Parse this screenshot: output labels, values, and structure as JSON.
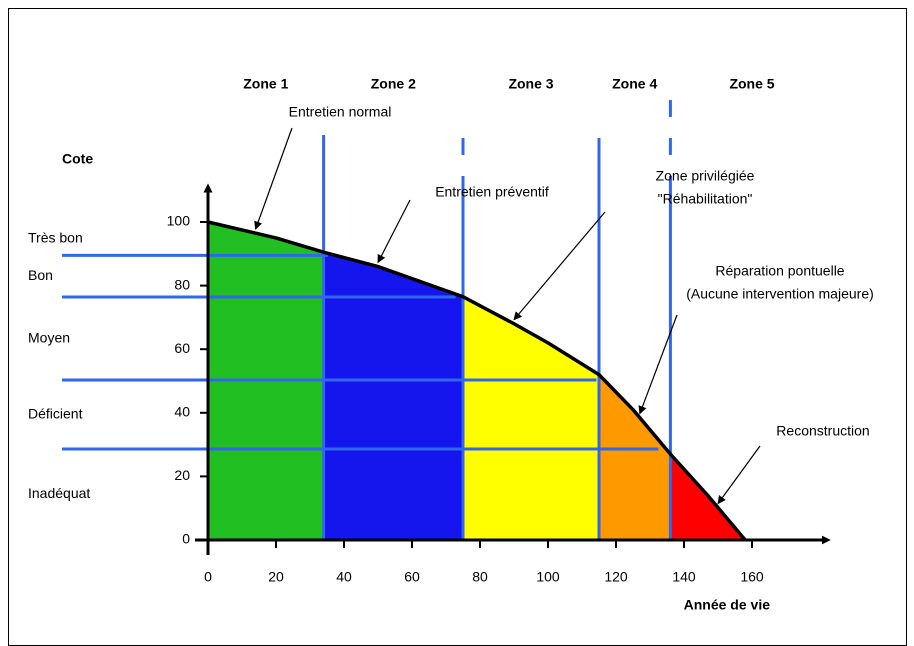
{
  "chart_data": {
    "type": "area",
    "y_axis_title": "Cote",
    "x_axis_title": "Année de vie",
    "x": [
      0,
      20,
      34,
      50,
      75,
      90,
      100,
      115,
      125,
      136,
      147,
      158
    ],
    "values": [
      100,
      95,
      90.5,
      86,
      76.5,
      68,
      62,
      52,
      41,
      27,
      14,
      0
    ],
    "xlim": [
      0,
      184
    ],
    "ylim": [
      0,
      113
    ],
    "xticks": [
      0,
      20,
      40,
      60,
      80,
      100,
      120,
      140,
      160
    ],
    "yticks": [
      0,
      20,
      40,
      60,
      80,
      100
    ],
    "zones": [
      {
        "name": "Zone 1",
        "color": "#22bf22"
      },
      {
        "name": "Zone 2",
        "color": "#1515ee"
      },
      {
        "name": "Zone 3",
        "color": "#ffff00"
      },
      {
        "name": "Zone 4",
        "color": "#ff9900"
      },
      {
        "name": "Zone 5",
        "color": "#ff0000"
      }
    ],
    "zone_boundaries": [
      34,
      75,
      115,
      136
    ],
    "boundary_color": "#3366ee",
    "levels": [
      {
        "label": "Très bon",
        "value": 89.5
      },
      {
        "label": "Bon",
        "value": 76.4
      },
      {
        "label": "Moyen",
        "value": 50.3
      },
      {
        "label": "Déficient",
        "value": 28.6
      },
      {
        "label": "Inadéquat",
        "value": 0
      }
    ],
    "annotations": [
      {
        "lines": [
          "Entretien normal"
        ]
      },
      {
        "lines": [
          "Entretien préventif"
        ]
      },
      {
        "lines": [
          "Zone privilégiée",
          "\"Réhabilitation\""
        ]
      },
      {
        "lines": [
          "Réparation pontuelle",
          "(Aucune intervention majeure)"
        ]
      },
      {
        "lines": [
          "Reconstruction"
        ]
      }
    ]
  }
}
